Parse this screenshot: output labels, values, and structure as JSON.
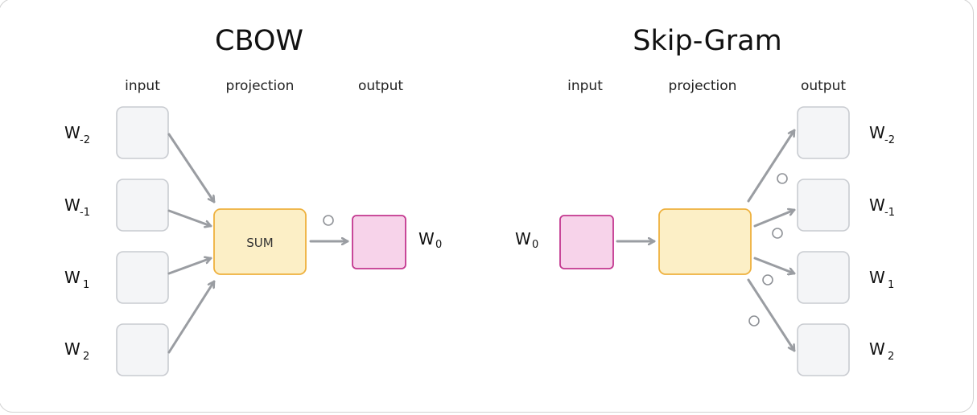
{
  "cbow": {
    "title": "CBOW",
    "labels": {
      "input": "input",
      "projection": "projection",
      "output": "output"
    },
    "inputs": [
      {
        "w": "W",
        "sub": "-2"
      },
      {
        "w": "W",
        "sub": "-1"
      },
      {
        "w": "W",
        "sub": "1"
      },
      {
        "w": "W",
        "sub": "2"
      }
    ],
    "projection_label": "SUM",
    "output": {
      "w": "W",
      "sub": "0"
    }
  },
  "skipgram": {
    "title": "Skip-Gram",
    "labels": {
      "input": "input",
      "projection": "projection",
      "output": "output"
    },
    "input": {
      "w": "W",
      "sub": "0"
    },
    "outputs": [
      {
        "w": "W",
        "sub": "-2"
      },
      {
        "w": "W",
        "sub": "-1"
      },
      {
        "w": "W",
        "sub": "1"
      },
      {
        "w": "W",
        "sub": "2"
      }
    ]
  },
  "colors": {
    "input_box": "#f4f5f7",
    "projection_box": "#fcefc6",
    "output_box": "#f7d3ea",
    "arrow": "#9a9da2"
  }
}
